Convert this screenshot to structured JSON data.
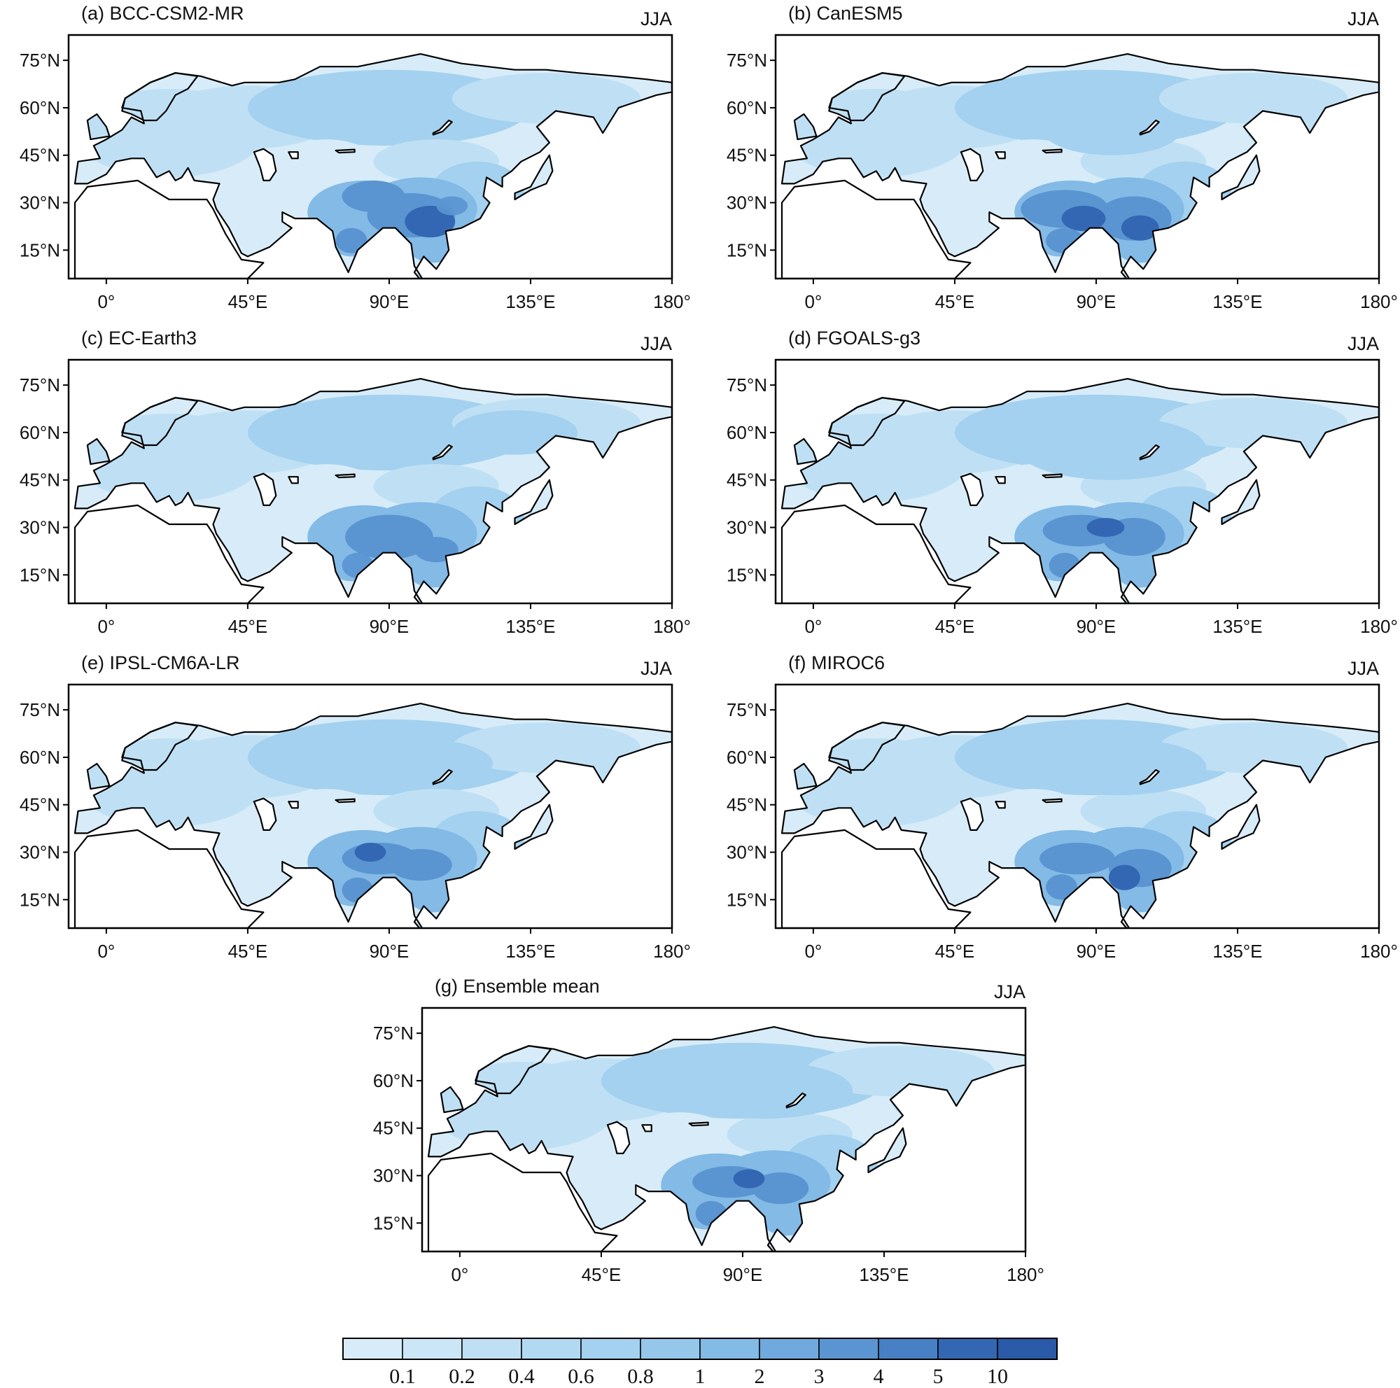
{
  "figure": {
    "season": "JJA",
    "lat_ticks": [
      "75°N",
      "60°N",
      "45°N",
      "30°N",
      "15°N"
    ],
    "lon_ticks": [
      "0°",
      "45°E",
      "90°E",
      "135°E",
      "180°"
    ],
    "panels": [
      {
        "id": "a",
        "title": "(a) BCC-CSM2-MR",
        "season": "JJA"
      },
      {
        "id": "b",
        "title": "(b) CanESM5",
        "season": "JJA"
      },
      {
        "id": "c",
        "title": "(c) EC-Earth3",
        "season": "JJA"
      },
      {
        "id": "d",
        "title": "(d) FGOALS-g3",
        "season": "JJA"
      },
      {
        "id": "e",
        "title": "(e) IPSL-CM6A-LR",
        "season": "JJA"
      },
      {
        "id": "f",
        "title": "(f) MIROC6",
        "season": "JJA"
      },
      {
        "id": "g",
        "title": "(g) Ensemble mean",
        "season": "JJA"
      }
    ],
    "colorbar": {
      "labels": [
        "0.1",
        "0.2",
        "0.4",
        "0.6",
        "0.8",
        "1",
        "2",
        "3",
        "4",
        "5",
        "10"
      ],
      "colors": [
        "#d7ecf8",
        "#cbe6f6",
        "#bfe0f4",
        "#b2d9f2",
        "#a4d1ef",
        "#95c7eb",
        "#83bae6",
        "#6fa9dd",
        "#5a95d2",
        "#4780c5",
        "#3467b3",
        "#2a5aa8"
      ]
    },
    "shading_colors": {
      "very_light": "#d7ecf8",
      "light": "#bfe0f4",
      "medium": "#a4d1ef",
      "medium_dark": "#83bae6",
      "dark": "#5a95d2",
      "darkest": "#3467b3"
    }
  }
}
